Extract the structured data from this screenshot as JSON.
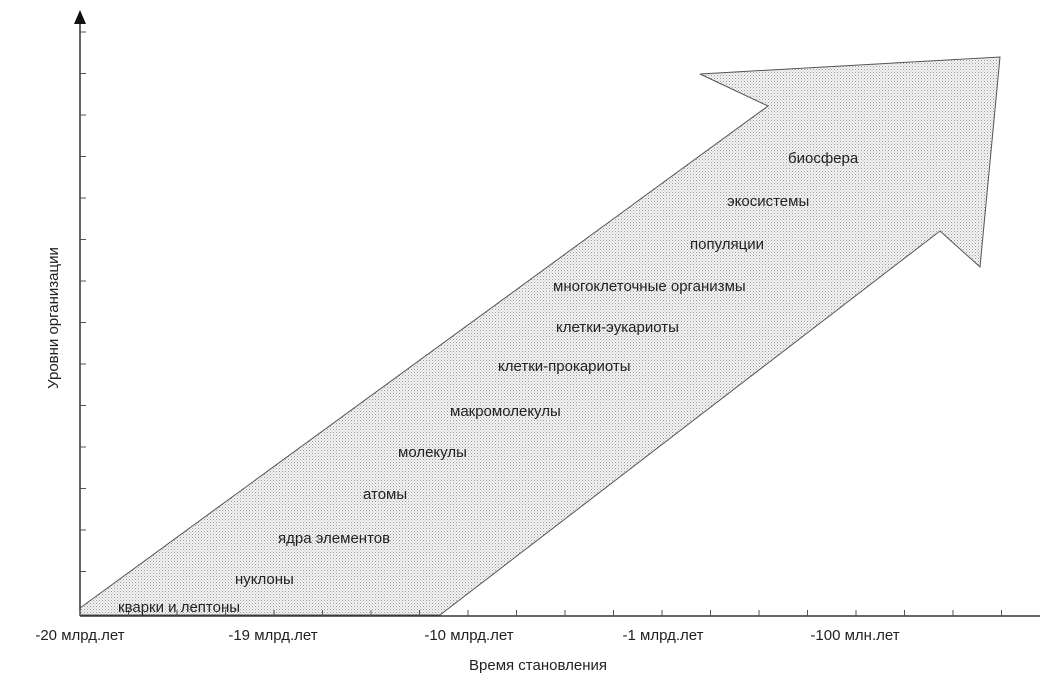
{
  "diagram": {
    "x_axis_title": "Время становления",
    "y_axis_title": "Уровни организации",
    "x_ticks": [
      "-20 млрд.лет",
      "-19 млрд.лет",
      "-10 млрд.лет",
      "-1 млрд.лет",
      "-100 млн.лет"
    ],
    "levels": [
      "кварки и лептоны",
      "нуклоны",
      "ядра элементов",
      "атомы",
      "молекулы",
      "макромолекулы",
      "клетки-прокариоты",
      "клетки-эукариоты",
      "многоклеточные организмы",
      "популяции",
      "экосистемы",
      "биосфера"
    ]
  }
}
